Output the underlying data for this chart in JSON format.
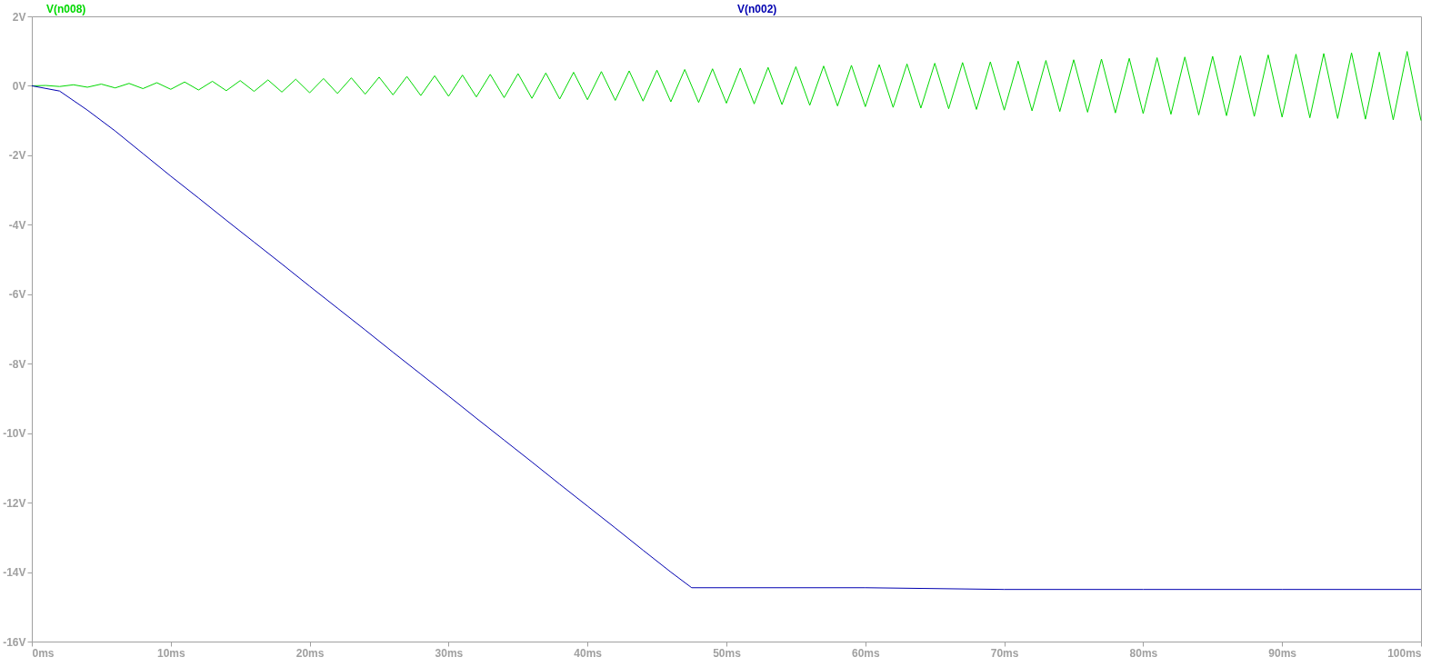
{
  "chart_data": {
    "type": "line",
    "legend": "top",
    "grid": false,
    "xlim": [
      0,
      100
    ],
    "ylim": [
      -16,
      2
    ],
    "xticks": [
      {
        "value": 0,
        "label": "0ms"
      },
      {
        "value": 10,
        "label": "10ms"
      },
      {
        "value": 20,
        "label": "20ms"
      },
      {
        "value": 30,
        "label": "30ms"
      },
      {
        "value": 40,
        "label": "40ms"
      },
      {
        "value": 50,
        "label": "50ms"
      },
      {
        "value": 60,
        "label": "60ms"
      },
      {
        "value": 70,
        "label": "70ms"
      },
      {
        "value": 80,
        "label": "80ms"
      },
      {
        "value": 90,
        "label": "90ms"
      },
      {
        "value": 100,
        "label": "100ms"
      }
    ],
    "yticks": [
      {
        "value": -16,
        "label": "-16V"
      },
      {
        "value": -14,
        "label": "-14V"
      },
      {
        "value": -12,
        "label": "-12V"
      },
      {
        "value": -10,
        "label": "-10V"
      },
      {
        "value": -8,
        "label": "-8V"
      },
      {
        "value": -6,
        "label": "-6V"
      },
      {
        "value": -4,
        "label": "-4V"
      },
      {
        "value": -2,
        "label": "-2V"
      },
      {
        "value": 0,
        "label": "0V"
      },
      {
        "value": 2,
        "label": "2V"
      }
    ],
    "series": [
      {
        "name": "V(n008)",
        "color": "#00d800",
        "x": [
          0,
          1,
          2,
          3,
          4,
          5,
          6,
          7,
          8,
          9,
          10,
          11,
          12,
          13,
          14,
          15,
          16,
          17,
          18,
          19,
          20,
          21,
          22,
          23,
          24,
          25,
          26,
          27,
          28,
          29,
          30,
          31,
          32,
          33,
          34,
          35,
          36,
          37,
          38,
          39,
          40,
          41,
          42,
          43,
          44,
          45,
          46,
          47,
          48,
          49,
          50,
          51,
          52,
          53,
          54,
          55,
          56,
          57,
          58,
          59,
          60,
          61,
          62,
          63,
          64,
          65,
          66,
          67,
          68,
          69,
          70,
          71,
          72,
          73,
          74,
          75,
          76,
          77,
          78,
          79,
          80,
          81,
          82,
          83,
          84,
          85,
          86,
          87,
          88,
          89,
          90,
          91,
          92,
          93,
          94,
          95,
          96,
          97,
          98,
          99,
          100
        ],
        "values": [
          0,
          0.01,
          -0.02,
          0.03,
          -0.04,
          0.05,
          -0.06,
          0.07,
          -0.08,
          0.09,
          -0.1,
          0.11,
          -0.12,
          0.13,
          -0.14,
          0.15,
          -0.16,
          0.17,
          -0.18,
          0.19,
          -0.2,
          0.21,
          -0.22,
          0.23,
          -0.24,
          0.25,
          -0.26,
          0.27,
          -0.28,
          0.29,
          -0.3,
          0.31,
          -0.32,
          0.33,
          -0.34,
          0.35,
          -0.36,
          0.37,
          -0.38,
          0.39,
          -0.4,
          0.41,
          -0.42,
          0.43,
          -0.44,
          0.45,
          -0.46,
          0.47,
          -0.48,
          0.49,
          -0.5,
          0.51,
          -0.52,
          0.53,
          -0.54,
          0.55,
          -0.56,
          0.57,
          -0.58,
          0.59,
          -0.6,
          0.61,
          -0.62,
          0.63,
          -0.64,
          0.65,
          -0.66,
          0.67,
          -0.68,
          0.69,
          -0.7,
          0.71,
          -0.72,
          0.73,
          -0.74,
          0.75,
          -0.76,
          0.77,
          -0.78,
          0.79,
          -0.8,
          0.81,
          -0.82,
          0.83,
          -0.84,
          0.85,
          -0.86,
          0.87,
          -0.88,
          0.89,
          -0.9,
          0.91,
          -0.92,
          0.93,
          -0.94,
          0.95,
          -0.96,
          0.97,
          -0.98,
          0.99,
          -1.0
        ]
      },
      {
        "name": "V(n002)",
        "color": "#0000b0",
        "x": [
          0,
          2,
          4,
          6,
          8,
          10,
          12,
          14,
          16,
          18,
          20,
          22,
          24,
          26,
          28,
          30,
          32,
          34,
          36,
          38,
          40,
          42,
          44,
          46,
          47.5,
          50,
          60,
          70,
          80,
          90,
          100
        ],
        "values": [
          0,
          -0.15,
          -0.7,
          -1.3,
          -1.95,
          -2.6,
          -3.23,
          -3.87,
          -4.5,
          -5.13,
          -5.77,
          -6.4,
          -7.03,
          -7.67,
          -8.3,
          -8.93,
          -9.57,
          -10.2,
          -10.83,
          -11.47,
          -12.1,
          -12.73,
          -13.37,
          -14.0,
          -14.45,
          -14.45,
          -14.45,
          -14.5,
          -14.5,
          -14.5,
          -14.5
        ]
      }
    ]
  }
}
